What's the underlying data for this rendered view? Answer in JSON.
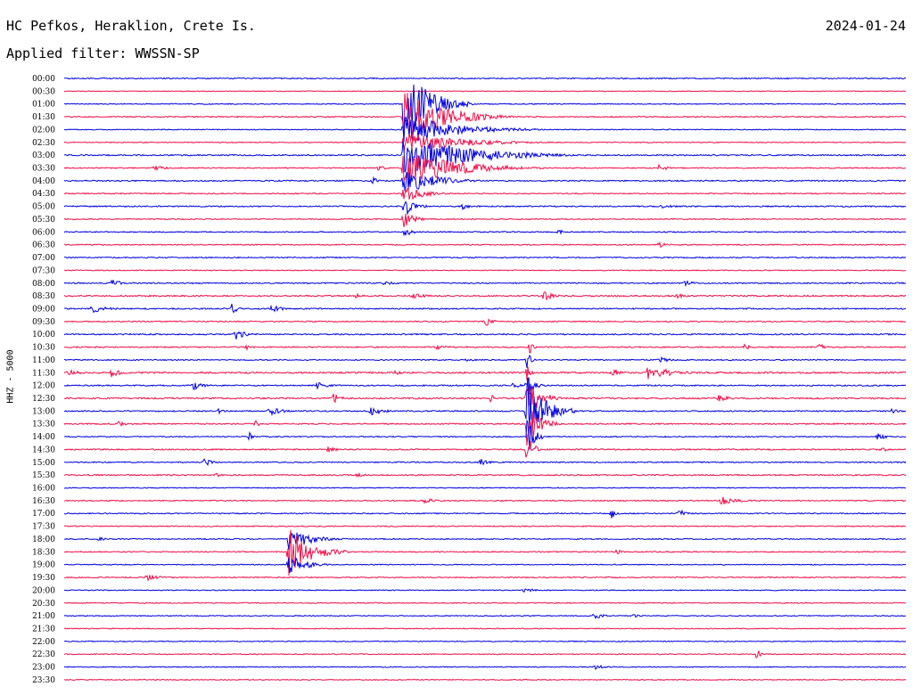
{
  "header": {
    "station": "HC Pefkos, Heraklion, Crete Is.",
    "date": "2024-01-24",
    "filter": "Applied filter: WWSSN-SP",
    "channel": "HHZ - 5000"
  },
  "colors": {
    "even_trace": "#0000e0",
    "odd_trace": "#f0104a"
  },
  "chart_data": {
    "type": "line",
    "title": "",
    "xlabel": "",
    "ylabel": "HHZ - 5000",
    "row_labels": [
      "00:00",
      "00:30",
      "01:00",
      "01:30",
      "02:00",
      "02:30",
      "03:00",
      "03:30",
      "04:00",
      "04:30",
      "05:00",
      "05:30",
      "06:00",
      "06:30",
      "07:00",
      "07:30",
      "08:00",
      "08:30",
      "09:00",
      "09:30",
      "10:00",
      "10:30",
      "11:00",
      "11:30",
      "12:00",
      "12:30",
      "13:00",
      "13:30",
      "14:00",
      "14:30",
      "15:00",
      "15:30",
      "16:00",
      "16:30",
      "17:00",
      "17:30",
      "18:00",
      "18:30",
      "19:00",
      "19:30",
      "20:00",
      "20:30",
      "21:00",
      "21:30",
      "22:00",
      "22:30",
      "23:00",
      "23:30"
    ],
    "row_minutes": 30,
    "noise": [
      0.6,
      0.4,
      0.5,
      0.6,
      0.5,
      0.5,
      0.7,
      0.6,
      0.7,
      0.6,
      0.7,
      0.6,
      0.6,
      0.6,
      0.6,
      0.5,
      0.7,
      0.8,
      0.7,
      0.6,
      0.7,
      0.7,
      0.6,
      0.9,
      0.7,
      0.8,
      0.7,
      0.7,
      0.6,
      0.7,
      0.6,
      0.7,
      0.5,
      0.6,
      0.6,
      0.6,
      0.6,
      0.6,
      0.5,
      0.6,
      0.5,
      0.5,
      0.5,
      0.5,
      0.5,
      0.5,
      0.5,
      0.5
    ],
    "events": [
      {
        "row": 2,
        "minute": 12.1,
        "amp": 44,
        "dur": 2.5
      },
      {
        "row": 3,
        "minute": 12.1,
        "amp": 30,
        "dur": 4.0
      },
      {
        "row": 4,
        "minute": 12.1,
        "amp": 18,
        "dur": 5.0
      },
      {
        "row": 5,
        "minute": 12.1,
        "amp": 12,
        "dur": 5.5
      },
      {
        "row": 6,
        "minute": 12.1,
        "amp": 26,
        "dur": 6.0
      },
      {
        "row": 7,
        "minute": 12.1,
        "amp": 22,
        "dur": 5.0
      },
      {
        "row": 8,
        "minute": 12.1,
        "amp": 16,
        "dur": 3.0
      },
      {
        "row": 9,
        "minute": 12.1,
        "amp": 10,
        "dur": 2.0
      },
      {
        "row": 10,
        "minute": 12.1,
        "amp": 14,
        "dur": 1.0
      },
      {
        "row": 11,
        "minute": 12.1,
        "amp": 10,
        "dur": 1.0
      },
      {
        "row": 12,
        "minute": 12.1,
        "amp": 6,
        "dur": 0.8
      },
      {
        "row": 7,
        "minute": 3.2,
        "amp": 3,
        "dur": 1.3
      },
      {
        "row": 7,
        "minute": 11.2,
        "amp": 3,
        "dur": 1.0
      },
      {
        "row": 7,
        "minute": 21.2,
        "amp": 4,
        "dur": 1.0
      },
      {
        "row": 8,
        "minute": 11.0,
        "amp": 4,
        "dur": 0.6
      },
      {
        "row": 10,
        "minute": 14.2,
        "amp": 4,
        "dur": 0.6
      },
      {
        "row": 10,
        "minute": 21.3,
        "amp": 3,
        "dur": 1.3
      },
      {
        "row": 12,
        "minute": 17.6,
        "amp": 4,
        "dur": 0.5
      },
      {
        "row": 13,
        "minute": 21.2,
        "amp": 4,
        "dur": 0.8
      },
      {
        "row": 16,
        "minute": 1.7,
        "amp": 6,
        "dur": 0.8
      },
      {
        "row": 16,
        "minute": 11.4,
        "amp": 3,
        "dur": 1.0
      },
      {
        "row": 16,
        "minute": 22.1,
        "amp": 4,
        "dur": 0.8
      },
      {
        "row": 17,
        "minute": 10.4,
        "amp": 3,
        "dur": 0.6
      },
      {
        "row": 17,
        "minute": 12.4,
        "amp": 3,
        "dur": 1.8
      },
      {
        "row": 17,
        "minute": 17.1,
        "amp": 6,
        "dur": 1.0
      },
      {
        "row": 17,
        "minute": 21.8,
        "amp": 3,
        "dur": 1.2
      },
      {
        "row": 18,
        "minute": 1.0,
        "amp": 5,
        "dur": 1.5
      },
      {
        "row": 18,
        "minute": 6.0,
        "amp": 9,
        "dur": 0.4
      },
      {
        "row": 18,
        "minute": 7.4,
        "amp": 5,
        "dur": 1.0
      },
      {
        "row": 19,
        "minute": 15.0,
        "amp": 6,
        "dur": 0.8
      },
      {
        "row": 20,
        "minute": 6.1,
        "amp": 7,
        "dur": 1.0
      },
      {
        "row": 21,
        "minute": 6.5,
        "amp": 3,
        "dur": 1.0
      },
      {
        "row": 21,
        "minute": 13.2,
        "amp": 3,
        "dur": 1.5
      },
      {
        "row": 21,
        "minute": 16.6,
        "amp": 8,
        "dur": 0.3
      },
      {
        "row": 21,
        "minute": 24.2,
        "amp": 4,
        "dur": 0.8
      },
      {
        "row": 21,
        "minute": 26.9,
        "amp": 5,
        "dur": 0.6
      },
      {
        "row": 22,
        "minute": 14.3,
        "amp": 4,
        "dur": 0.8
      },
      {
        "row": 22,
        "minute": 21.2,
        "amp": 4,
        "dur": 1.0
      },
      {
        "row": 23,
        "minute": 0.1,
        "amp": 4,
        "dur": 1.3
      },
      {
        "row": 23,
        "minute": 1.7,
        "amp": 6,
        "dur": 0.8
      },
      {
        "row": 23,
        "minute": 11.8,
        "amp": 3,
        "dur": 0.8
      },
      {
        "row": 23,
        "minute": 19.5,
        "amp": 6,
        "dur": 1.0
      },
      {
        "row": 23,
        "minute": 20.8,
        "amp": 8,
        "dur": 2.5
      },
      {
        "row": 24,
        "minute": 4.6,
        "amp": 5,
        "dur": 1.0
      },
      {
        "row": 24,
        "minute": 9.0,
        "amp": 5,
        "dur": 1.0
      },
      {
        "row": 24,
        "minute": 16.0,
        "amp": 5,
        "dur": 0.6
      },
      {
        "row": 25,
        "minute": 9.6,
        "amp": 6,
        "dur": 0.8
      },
      {
        "row": 25,
        "minute": 15.2,
        "amp": 5,
        "dur": 0.5
      },
      {
        "row": 25,
        "minute": 23.3,
        "amp": 4,
        "dur": 1.5
      },
      {
        "row": 26,
        "minute": 5.5,
        "amp": 4,
        "dur": 0.5
      },
      {
        "row": 26,
        "minute": 7.3,
        "amp": 5,
        "dur": 1.3
      },
      {
        "row": 26,
        "minute": 10.9,
        "amp": 5,
        "dur": 1.5
      },
      {
        "row": 26,
        "minute": 16.5,
        "amp": 40,
        "dur": 1.8
      },
      {
        "row": 26,
        "minute": 29.5,
        "amp": 4,
        "dur": 0.5
      },
      {
        "row": 25,
        "minute": 16.5,
        "amp": 30,
        "dur": 1.2
      },
      {
        "row": 27,
        "minute": 16.5,
        "amp": 28,
        "dur": 1.2
      },
      {
        "row": 28,
        "minute": 16.5,
        "amp": 22,
        "dur": 0.8
      },
      {
        "row": 29,
        "minute": 16.5,
        "amp": 18,
        "dur": 0.6
      },
      {
        "row": 24,
        "minute": 16.5,
        "amp": 18,
        "dur": 0.6
      },
      {
        "row": 22,
        "minute": 16.5,
        "amp": 10,
        "dur": 0.4
      },
      {
        "row": 23,
        "minute": 16.5,
        "amp": 10,
        "dur": 0.4
      },
      {
        "row": 27,
        "minute": 1.9,
        "amp": 4,
        "dur": 0.8
      },
      {
        "row": 27,
        "minute": 6.8,
        "amp": 5,
        "dur": 0.4
      },
      {
        "row": 28,
        "minute": 6.6,
        "amp": 5,
        "dur": 0.3
      },
      {
        "row": 28,
        "minute": 29.0,
        "amp": 4,
        "dur": 1.0
      },
      {
        "row": 29,
        "minute": 9.4,
        "amp": 4,
        "dur": 0.8
      },
      {
        "row": 29,
        "minute": 29.1,
        "amp": 5,
        "dur": 0.6
      },
      {
        "row": 30,
        "minute": 5.0,
        "amp": 5,
        "dur": 0.8
      },
      {
        "row": 30,
        "minute": 14.8,
        "amp": 5,
        "dur": 0.8
      },
      {
        "row": 31,
        "minute": 5.4,
        "amp": 4,
        "dur": 0.5
      },
      {
        "row": 31,
        "minute": 10.4,
        "amp": 3,
        "dur": 1.0
      },
      {
        "row": 33,
        "minute": 12.8,
        "amp": 3,
        "dur": 1.5
      },
      {
        "row": 33,
        "minute": 23.4,
        "amp": 5,
        "dur": 1.8
      },
      {
        "row": 34,
        "minute": 19.5,
        "amp": 6,
        "dur": 0.5
      },
      {
        "row": 34,
        "minute": 21.9,
        "amp": 7,
        "dur": 0.5
      },
      {
        "row": 36,
        "minute": 1.2,
        "amp": 3,
        "dur": 0.8
      },
      {
        "row": 36,
        "minute": 8.5,
        "amp": 7,
        "dur": 2.0
      },
      {
        "row": 36,
        "minute": 8.0,
        "amp": 12,
        "dur": 2.0
      },
      {
        "row": 37,
        "minute": 8.0,
        "amp": 28,
        "dur": 2.2
      },
      {
        "row": 38,
        "minute": 8.0,
        "amp": 14,
        "dur": 1.5
      },
      {
        "row": 37,
        "minute": 19.7,
        "amp": 4,
        "dur": 0.4
      },
      {
        "row": 39,
        "minute": 2.9,
        "amp": 4,
        "dur": 1.5
      },
      {
        "row": 40,
        "minute": 16.4,
        "amp": 4,
        "dur": 0.8
      },
      {
        "row": 42,
        "minute": 18.9,
        "amp": 5,
        "dur": 0.8
      },
      {
        "row": 42,
        "minute": 20.3,
        "amp": 3,
        "dur": 0.5
      },
      {
        "row": 45,
        "minute": 24.7,
        "amp": 8,
        "dur": 0.3
      },
      {
        "row": 46,
        "minute": 18.9,
        "amp": 3,
        "dur": 1.2
      }
    ]
  }
}
